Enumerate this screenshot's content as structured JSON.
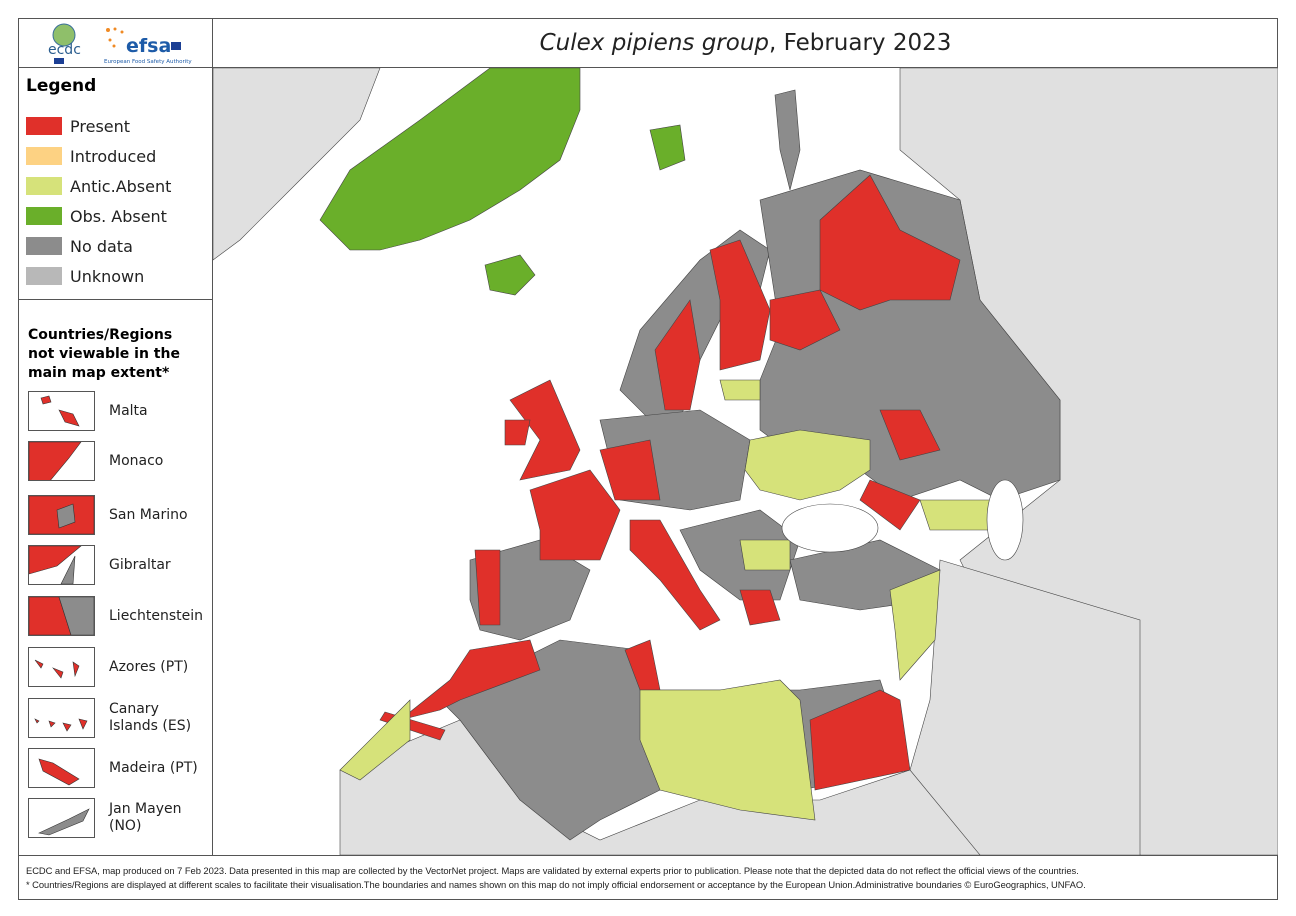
{
  "title": {
    "italic": "Culex pipiens group",
    "rest": ", February 2023"
  },
  "logos": {
    "ecdc": "ecdc",
    "efsa": "efsa",
    "efsa_sub": "European Food Safety Authority"
  },
  "legend": {
    "title": "Legend",
    "items": [
      {
        "label": "Present",
        "color": "#e0302a"
      },
      {
        "label": "Introduced",
        "color": "#fdd283"
      },
      {
        "label": "Antic.Absent",
        "color": "#d6e27a"
      },
      {
        "label": "Obs. Absent",
        "color": "#6aaf2a"
      },
      {
        "label": "No data",
        "color": "#8c8c8c"
      },
      {
        "label": "Unknown",
        "color": "#b8b8b8"
      }
    ]
  },
  "insets": {
    "title": "Countries/Regions not viewable in the main map extent*",
    "items": [
      {
        "label": "Malta",
        "status": "Present"
      },
      {
        "label": "Monaco",
        "status": "Present"
      },
      {
        "label": "San Marino",
        "status": "Present"
      },
      {
        "label": "Gibraltar",
        "status": "Present"
      },
      {
        "label": "Liechtenstein",
        "status": "Present"
      },
      {
        "label": "Azores (PT)",
        "status": "Present"
      },
      {
        "label": "Canary Islands (ES)",
        "status": "Present"
      },
      {
        "label": "Madeira (PT)",
        "status": "Present"
      },
      {
        "label": "Jan Mayen (NO)",
        "status": "No data"
      }
    ]
  },
  "footer": {
    "line1": "ECDC and EFSA, map produced on 7 Feb 2023. Data presented in this map are collected by the VectorNet project. Maps are validated by external experts prior to publication. Please note that the depicted data do not reflect the official views of the countries.",
    "line2": "* Countries/Regions are displayed at different scales to facilitate their visualisation.The boundaries and names shown on this map do not imply official endorsement or acceptance by the European Union.Administrative boundaries © EuroGeographics, UNFAO."
  }
}
